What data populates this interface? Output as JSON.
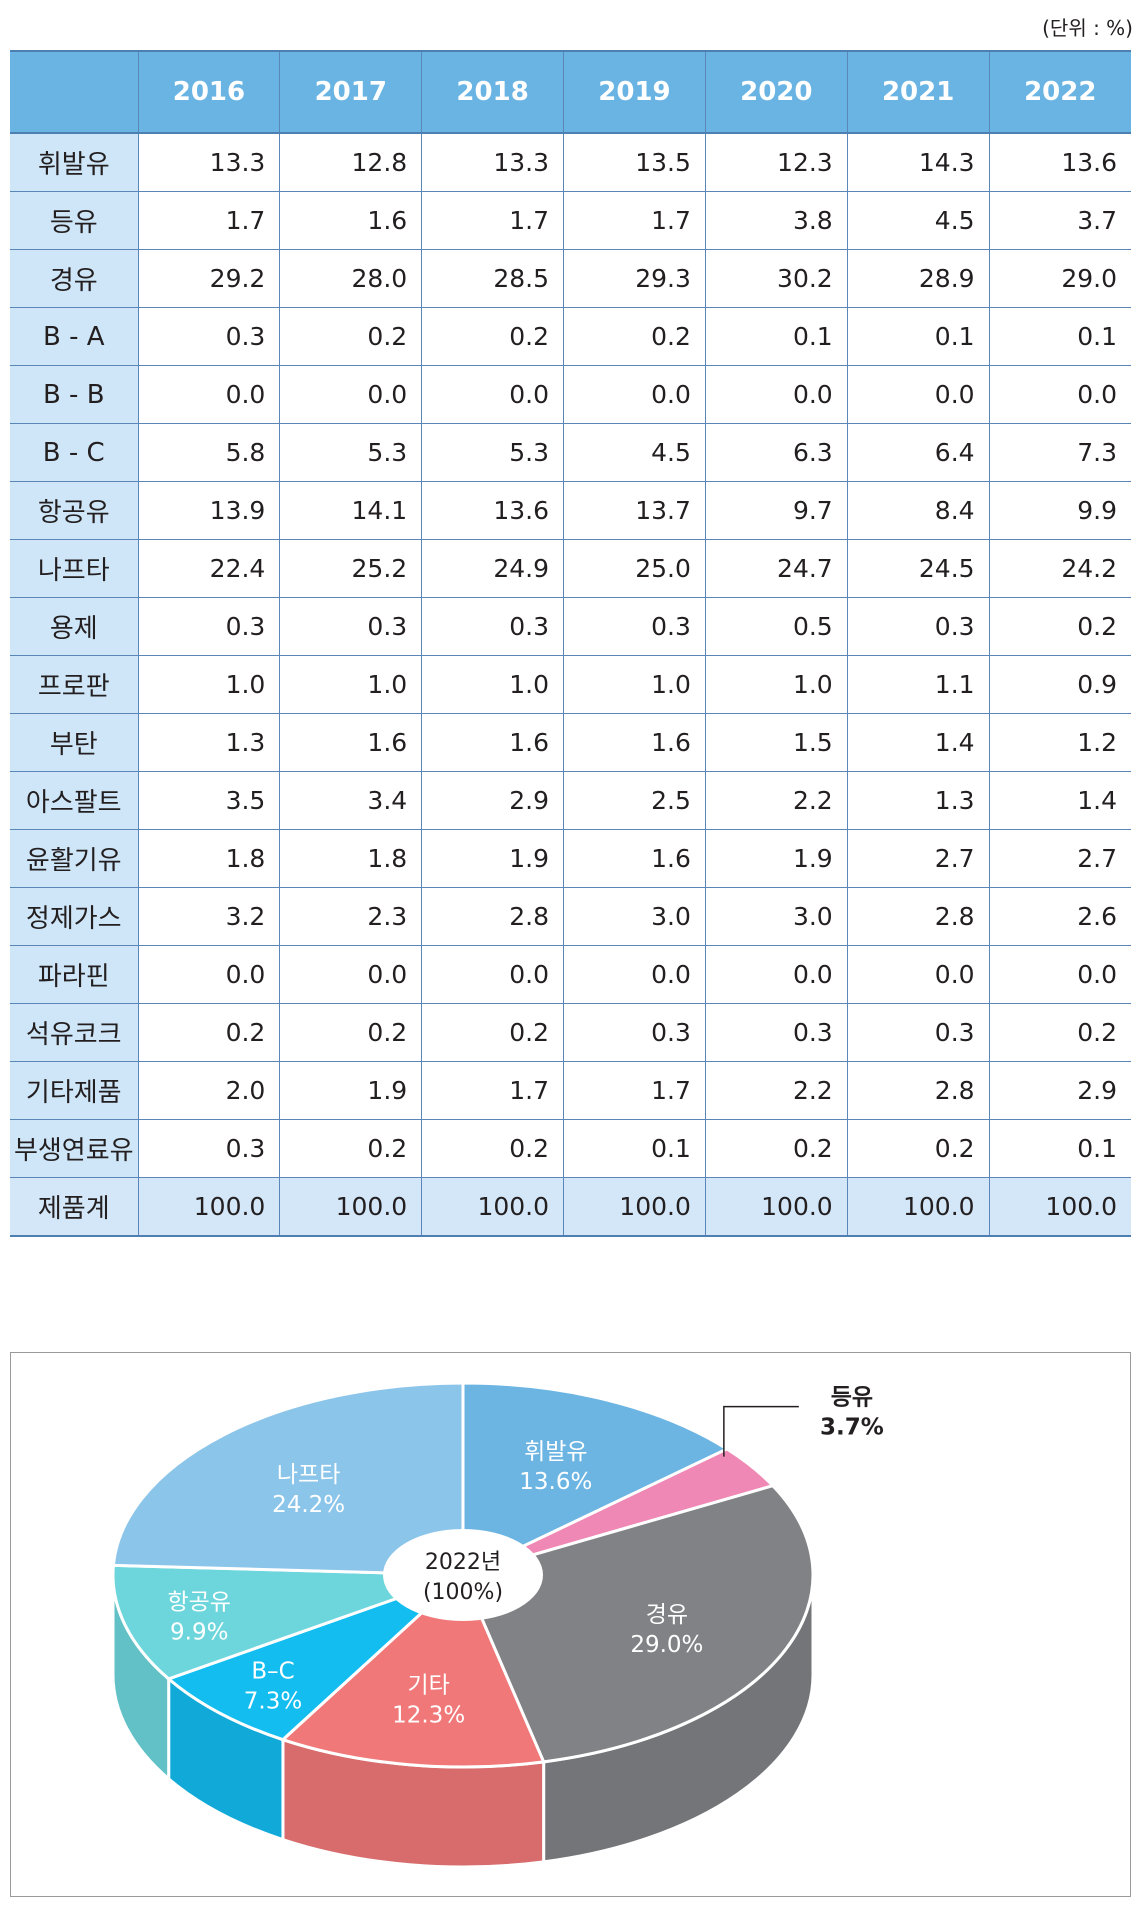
{
  "unit_label": "(단위 : %)",
  "table": {
    "years": [
      "2016",
      "2017",
      "2018",
      "2019",
      "2020",
      "2021",
      "2022"
    ],
    "rows": [
      {
        "label": "휘발유",
        "values": [
          "13.3",
          "12.8",
          "13.3",
          "13.5",
          "12.3",
          "14.3",
          "13.6"
        ]
      },
      {
        "label": "등유",
        "values": [
          "1.7",
          "1.6",
          "1.7",
          "1.7",
          "3.8",
          "4.5",
          "3.7"
        ]
      },
      {
        "label": "경유",
        "values": [
          "29.2",
          "28.0",
          "28.5",
          "29.3",
          "30.2",
          "28.9",
          "29.0"
        ]
      },
      {
        "label": "B - A",
        "values": [
          "0.3",
          "0.2",
          "0.2",
          "0.2",
          "0.1",
          "0.1",
          "0.1"
        ]
      },
      {
        "label": "B - B",
        "values": [
          "0.0",
          "0.0",
          "0.0",
          "0.0",
          "0.0",
          "0.0",
          "0.0"
        ]
      },
      {
        "label": "B - C",
        "values": [
          "5.8",
          "5.3",
          "5.3",
          "4.5",
          "6.3",
          "6.4",
          "7.3"
        ]
      },
      {
        "label": "항공유",
        "values": [
          "13.9",
          "14.1",
          "13.6",
          "13.7",
          "9.7",
          "8.4",
          "9.9"
        ]
      },
      {
        "label": "나프타",
        "values": [
          "22.4",
          "25.2",
          "24.9",
          "25.0",
          "24.7",
          "24.5",
          "24.2"
        ]
      },
      {
        "label": "용제",
        "values": [
          "0.3",
          "0.3",
          "0.3",
          "0.3",
          "0.5",
          "0.3",
          "0.2"
        ]
      },
      {
        "label": "프로판",
        "values": [
          "1.0",
          "1.0",
          "1.0",
          "1.0",
          "1.0",
          "1.1",
          "0.9"
        ]
      },
      {
        "label": "부탄",
        "values": [
          "1.3",
          "1.6",
          "1.6",
          "1.6",
          "1.5",
          "1.4",
          "1.2"
        ]
      },
      {
        "label": "아스팔트",
        "values": [
          "3.5",
          "3.4",
          "2.9",
          "2.5",
          "2.2",
          "1.3",
          "1.4"
        ]
      },
      {
        "label": "윤활기유",
        "values": [
          "1.8",
          "1.8",
          "1.9",
          "1.6",
          "1.9",
          "2.7",
          "2.7"
        ]
      },
      {
        "label": "정제가스",
        "values": [
          "3.2",
          "2.3",
          "2.8",
          "3.0",
          "3.0",
          "2.8",
          "2.6"
        ]
      },
      {
        "label": "파라핀",
        "values": [
          "0.0",
          "0.0",
          "0.0",
          "0.0",
          "0.0",
          "0.0",
          "0.0"
        ]
      },
      {
        "label": "석유코크",
        "values": [
          "0.2",
          "0.2",
          "0.2",
          "0.3",
          "0.3",
          "0.3",
          "0.2"
        ]
      },
      {
        "label": "기타제품",
        "values": [
          "2.0",
          "1.9",
          "1.7",
          "1.7",
          "2.2",
          "2.8",
          "2.9"
        ]
      },
      {
        "label": "부생연료유",
        "values": [
          "0.3",
          "0.2",
          "0.2",
          "0.1",
          "0.2",
          "0.2",
          "0.1"
        ]
      }
    ],
    "total": {
      "label": "제품계",
      "values": [
        "100.0",
        "100.0",
        "100.0",
        "100.0",
        "100.0",
        "100.0",
        "100.0"
      ]
    }
  },
  "chart_data": {
    "type": "pie",
    "center_label": [
      "2022년",
      "(100%)"
    ],
    "slices": [
      {
        "name": "휘발유",
        "value": 13.6,
        "label": "13.6%",
        "color": "#6cb5e3"
      },
      {
        "name": "등유",
        "value": 3.7,
        "label": "3.7%",
        "color": "#ef88b4"
      },
      {
        "name": "경유",
        "value": 29.0,
        "label": "29.0%",
        "color": "#808285"
      },
      {
        "name": "기타",
        "value": 12.3,
        "label": "12.3%",
        "color": "#f07879"
      },
      {
        "name": "B–C",
        "value": 7.3,
        "label": "7.3%",
        "color": "#13bdf0"
      },
      {
        "name": "항공유",
        "value": 9.9,
        "label": "9.9%",
        "color": "#6dd6dc"
      },
      {
        "name": "나프타",
        "value": 24.2,
        "label": "24.2%",
        "color": "#8cc5ea"
      }
    ]
  }
}
